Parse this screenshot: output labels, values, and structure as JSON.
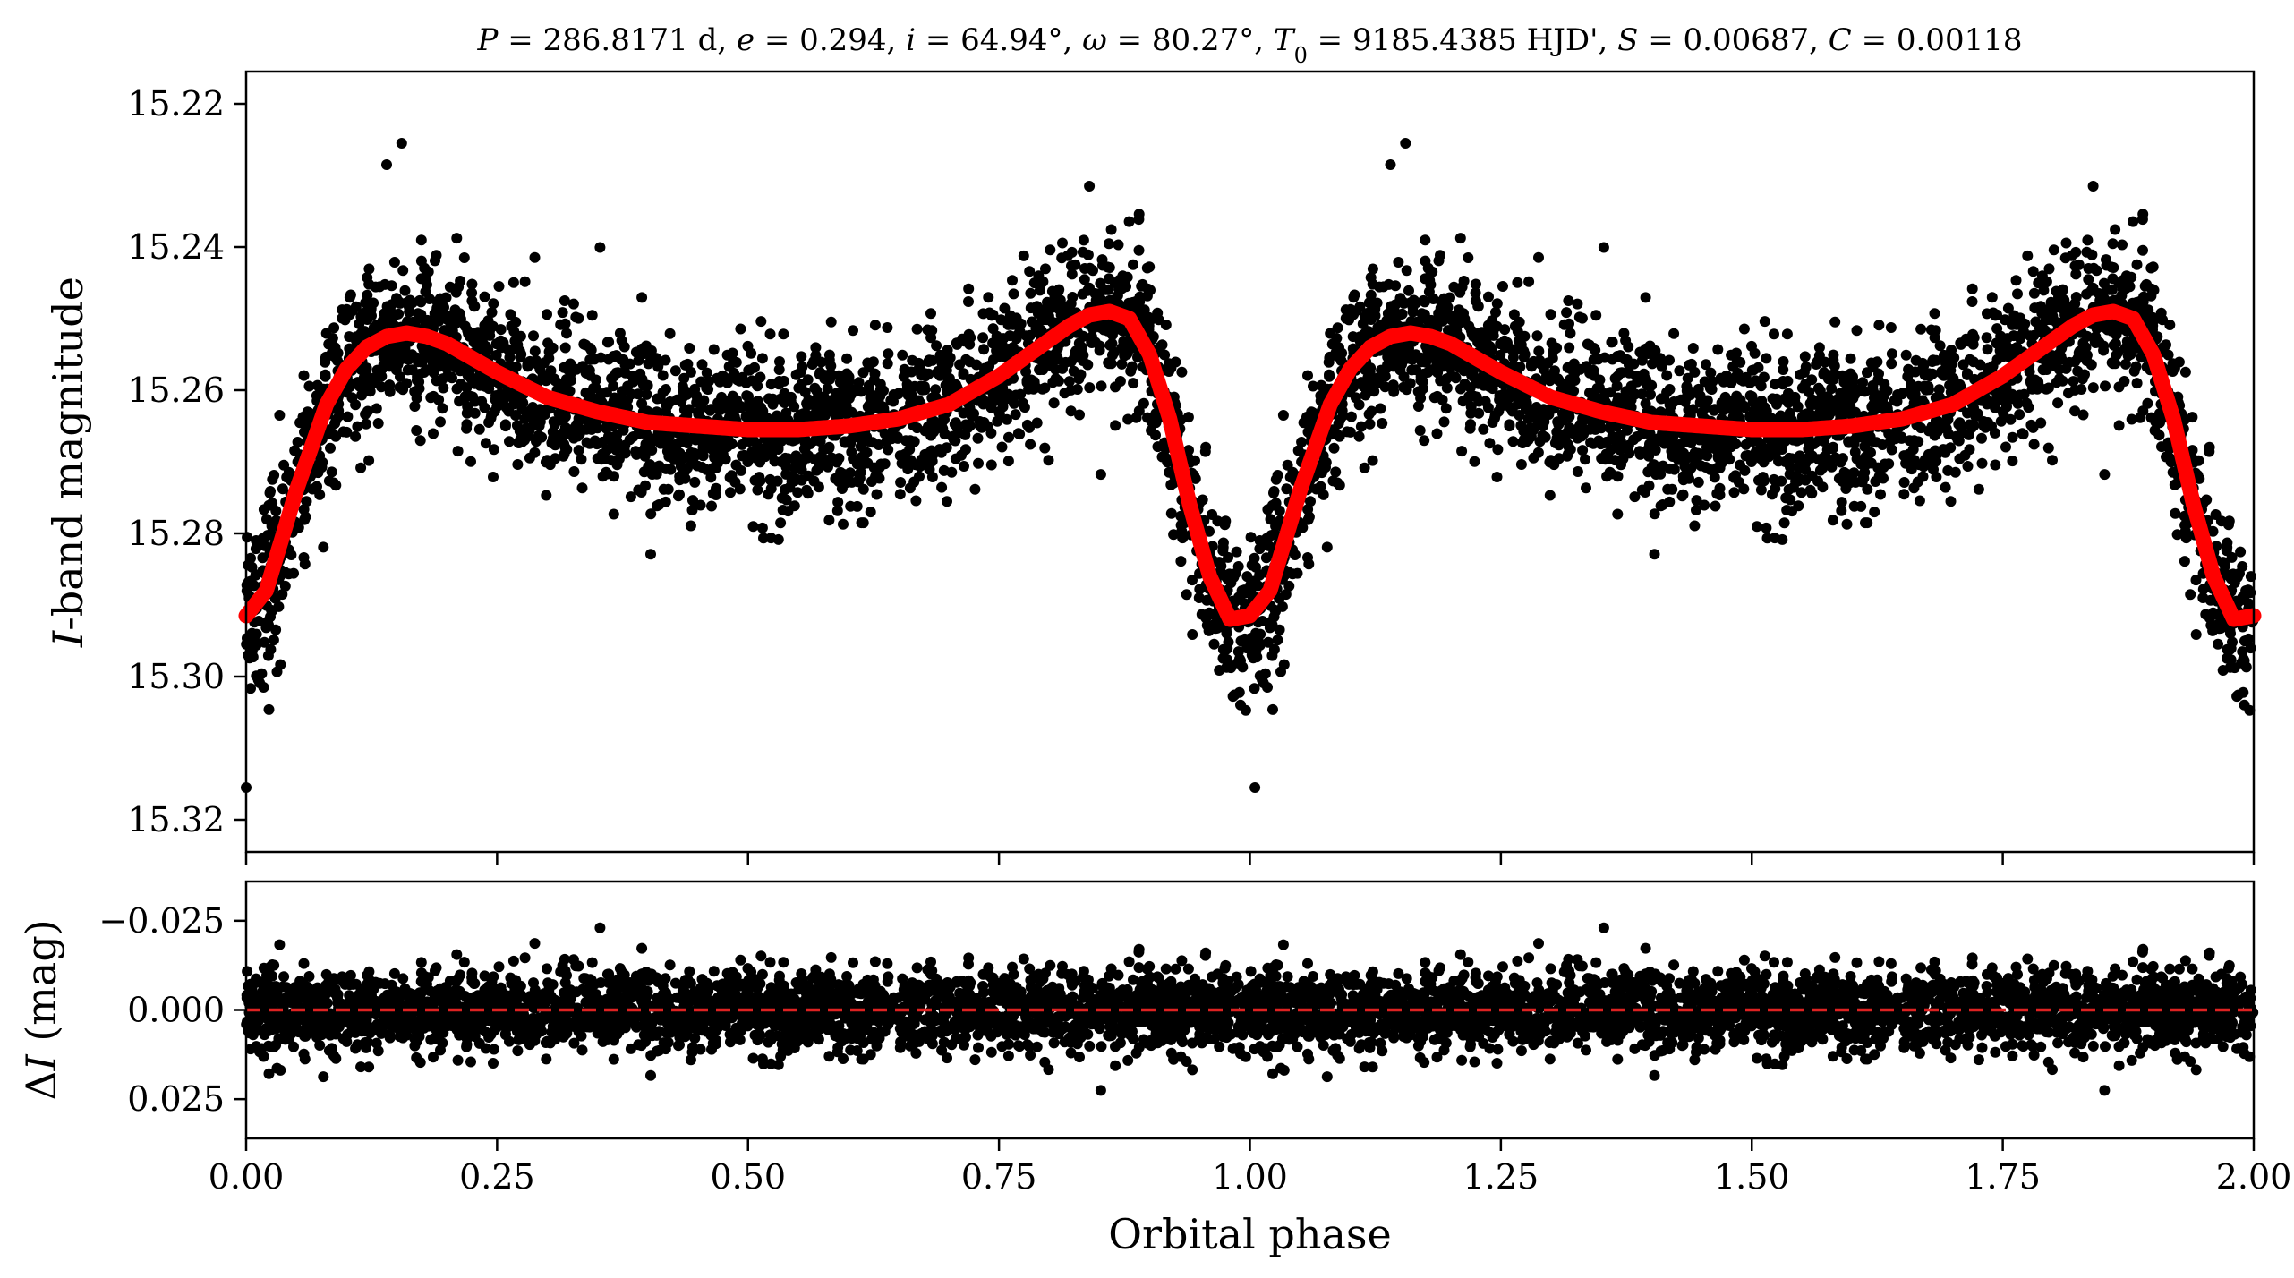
{
  "chart_data": [
    {
      "type": "scatter",
      "panel": "top",
      "title": "P = 286.8171 d, e = 0.294, i = 64.94°, ω = 80.27°, T0 = 9185.4385 HJD', S = 0.00687, C = 0.00118",
      "title_parts": [
        {
          "t": "P",
          "i": true
        },
        {
          "t": " = 286.8171 d, "
        },
        {
          "t": "e",
          "i": true
        },
        {
          "t": " = 0.294, "
        },
        {
          "t": "i",
          "i": true
        },
        {
          "t": " = 64.94°, "
        },
        {
          "t": "ω",
          "i": true
        },
        {
          "t": " = 80.27°, "
        },
        {
          "t": "T",
          "i": true
        },
        {
          "t": "0",
          "sub": true
        },
        {
          "t": " = 9185.4385 HJD', "
        },
        {
          "t": "S",
          "i": true
        },
        {
          "t": " = 0.00687, "
        },
        {
          "t": "C",
          "i": true
        },
        {
          "t": " = 0.00118"
        }
      ],
      "xlabel": "",
      "ylabel": "I-band magnitude",
      "ylabel_parts": [
        {
          "t": "I",
          "i": true
        },
        {
          "t": "-band magnitude"
        }
      ],
      "xlim": [
        0.0,
        2.0
      ],
      "ylim": [
        15.2155,
        15.3245
      ],
      "y_inverted": true,
      "yticks": [
        15.22,
        15.24,
        15.26,
        15.28,
        15.3,
        15.32
      ],
      "ytick_labels": [
        "15.22",
        "15.24",
        "15.26",
        "15.28",
        "15.30",
        "15.32"
      ],
      "xticks": [
        0.0,
        0.25,
        0.5,
        0.75,
        1.0,
        1.25,
        1.5,
        1.75,
        2.0
      ],
      "series": [
        {
          "kind": "points",
          "color": "#000000",
          "description_of_spread": "approx. 2600 observations per cycle, scatter sigma about 0.0055 mag",
          "phase": [
            0.0,
            0.02,
            0.05,
            0.08,
            0.1,
            0.12,
            0.14,
            0.16,
            0.18,
            0.2,
            0.25,
            0.3,
            0.35,
            0.4,
            0.45,
            0.5,
            0.55,
            0.6,
            0.65,
            0.7,
            0.75,
            0.78,
            0.8,
            0.82,
            0.84,
            0.86,
            0.88,
            0.9,
            0.92,
            0.94,
            0.96,
            0.98,
            1.0
          ],
          "magnitude": [
            15.2915,
            15.288,
            15.274,
            15.262,
            15.257,
            15.254,
            15.2525,
            15.252,
            15.2525,
            15.2535,
            15.2575,
            15.261,
            15.263,
            15.2645,
            15.265,
            15.2655,
            15.2655,
            15.265,
            15.264,
            15.262,
            15.258,
            15.255,
            15.253,
            15.251,
            15.2495,
            15.249,
            15.25,
            15.255,
            15.264,
            15.276,
            15.286,
            15.292,
            15.2915
          ]
        },
        {
          "kind": "line",
          "color": "#ff0000",
          "phase": [
            0.0,
            0.02,
            0.05,
            0.08,
            0.1,
            0.12,
            0.14,
            0.16,
            0.18,
            0.2,
            0.25,
            0.3,
            0.35,
            0.4,
            0.45,
            0.5,
            0.55,
            0.6,
            0.65,
            0.7,
            0.75,
            0.78,
            0.8,
            0.82,
            0.84,
            0.86,
            0.88,
            0.9,
            0.92,
            0.94,
            0.96,
            0.98,
            1.0
          ],
          "magnitude": [
            15.2915,
            15.288,
            15.274,
            15.262,
            15.257,
            15.254,
            15.2525,
            15.252,
            15.2525,
            15.2535,
            15.2575,
            15.261,
            15.263,
            15.2645,
            15.265,
            15.2655,
            15.2655,
            15.265,
            15.264,
            15.262,
            15.258,
            15.255,
            15.253,
            15.251,
            15.2495,
            15.249,
            15.25,
            15.255,
            15.264,
            15.276,
            15.286,
            15.292,
            15.2915
          ]
        }
      ],
      "notable_points": [
        {
          "x": 0.155,
          "y": 15.2255
        },
        {
          "x": 0.14,
          "y": 15.2285
        },
        {
          "x": 1.155,
          "y": 15.2255
        },
        {
          "x": 1.14,
          "y": 15.2285
        },
        {
          "x": 1.005,
          "y": 15.3155
        },
        {
          "x": 0.0,
          "y": 15.3155
        },
        {
          "x": 0.84,
          "y": 15.2315
        },
        {
          "x": 1.84,
          "y": 15.2315
        }
      ]
    },
    {
      "type": "scatter",
      "panel": "bottom",
      "xlabel": "Orbital phase",
      "ylabel": "ΔI (mag)",
      "ylabel_parts": [
        {
          "t": "Δ"
        },
        {
          "t": "I",
          "i": true
        },
        {
          "t": " (mag)"
        }
      ],
      "xlim": [
        0.0,
        2.0
      ],
      "ylim": [
        -0.036,
        0.036
      ],
      "y_inverted": true,
      "yticks": [
        -0.025,
        0.0,
        0.025
      ],
      "ytick_labels": [
        "−0.025",
        "0.000",
        "0.025"
      ],
      "xticks": [
        0.0,
        0.25,
        0.5,
        0.75,
        1.0,
        1.25,
        1.5,
        1.75,
        2.0
      ],
      "xtick_labels": [
        "0.00",
        "0.25",
        "0.50",
        "0.75",
        "1.00",
        "1.25",
        "1.50",
        "1.75",
        "2.00"
      ],
      "series": [
        {
          "kind": "points",
          "color": "#000000",
          "center": 0.0,
          "spread_sigma": 0.0055
        },
        {
          "kind": "reference-line",
          "color": "#dd2222",
          "style": "dashed",
          "y": 0.0
        }
      ]
    }
  ]
}
